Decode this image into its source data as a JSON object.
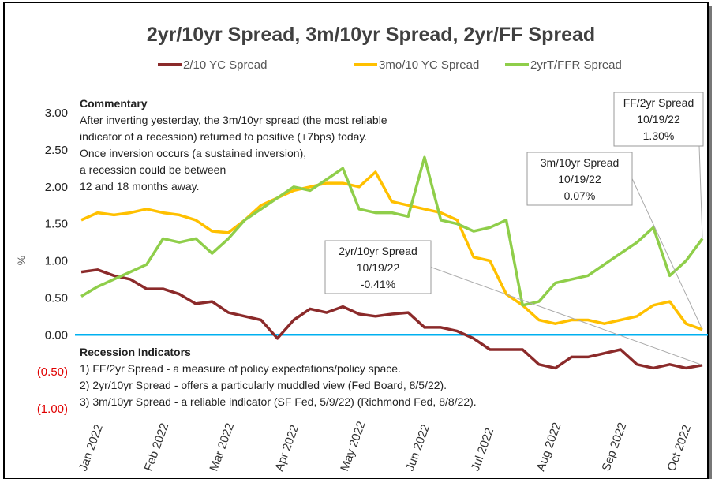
{
  "chart_data": {
    "type": "line",
    "title": "2yr/10yr Spread, 3m/10yr Spread, 2yr/FF Spread",
    "y_label": "%",
    "x": [
      "Jan 2022",
      null,
      null,
      null,
      "Feb 2022",
      null,
      null,
      null,
      "Mar 2022",
      null,
      null,
      null,
      "Apr 2022",
      null,
      null,
      null,
      "May 2022",
      null,
      null,
      null,
      "Jun 2022",
      null,
      null,
      null,
      "Jul 2022",
      null,
      null,
      null,
      "Aug 2022",
      null,
      null,
      null,
      "Sep 2022",
      null,
      null,
      null,
      "Oct 2022",
      null,
      null
    ],
    "series": [
      {
        "name": "2/10 YC Spread",
        "color": "#8b2a2a",
        "values": [
          0.85,
          0.88,
          0.8,
          0.75,
          0.62,
          0.62,
          0.55,
          0.42,
          0.45,
          0.3,
          0.25,
          0.2,
          -0.05,
          0.2,
          0.35,
          0.3,
          0.38,
          0.28,
          0.25,
          0.28,
          0.3,
          0.1,
          0.1,
          0.05,
          -0.05,
          -0.2,
          -0.2,
          -0.2,
          -0.4,
          -0.45,
          -0.3,
          -0.3,
          -0.25,
          -0.2,
          -0.4,
          -0.45,
          -0.4,
          -0.45,
          -0.41
        ]
      },
      {
        "name": "3mo/10 YC Spread",
        "color": "#ffc000",
        "values": [
          1.55,
          1.65,
          1.62,
          1.65,
          1.7,
          1.65,
          1.62,
          1.55,
          1.4,
          1.38,
          1.55,
          1.75,
          1.85,
          1.95,
          2.0,
          2.05,
          2.05,
          2.0,
          2.2,
          1.8,
          1.75,
          1.7,
          1.65,
          1.55,
          1.05,
          1.0,
          0.55,
          0.4,
          0.2,
          0.15,
          0.2,
          0.2,
          0.15,
          0.2,
          0.25,
          0.4,
          0.45,
          0.15,
          0.07
        ]
      },
      {
        "name": "2yrT/FFR Spread",
        "color": "#8fce4a",
        "values": [
          0.52,
          0.65,
          0.75,
          0.85,
          0.95,
          1.3,
          1.25,
          1.3,
          1.1,
          1.3,
          1.55,
          1.7,
          1.85,
          2.0,
          1.95,
          2.1,
          2.25,
          1.7,
          1.65,
          1.65,
          1.6,
          2.4,
          1.55,
          1.5,
          1.4,
          1.45,
          1.55,
          0.4,
          0.45,
          0.7,
          0.75,
          0.8,
          0.95,
          1.1,
          1.25,
          1.45,
          0.8,
          1.0,
          1.3
        ]
      }
    ],
    "ylim": [
      -1,
      3
    ],
    "yticks": [
      {
        "value": 3,
        "label": "3.00"
      },
      {
        "value": 2.5,
        "label": "2.50"
      },
      {
        "value": 2,
        "label": "2.00"
      },
      {
        "value": 1.5,
        "label": "1.50"
      },
      {
        "value": 1,
        "label": "1.00"
      },
      {
        "value": 0.5,
        "label": "0.50"
      },
      {
        "value": 0,
        "label": "0.00"
      },
      {
        "value": -0.5,
        "label": "(0.50)"
      },
      {
        "value": -1,
        "label": "(1.00)"
      }
    ],
    "negative_tick_color": "#e00000",
    "zero_line_color": "#00b0f0",
    "legend": "top",
    "commentary": {
      "heading": "Commentary",
      "lines": [
        "After inverting yesterday, the 3m/10yr spread (the most reliable",
        "indicator of a recession) returned to positive (+7bps) today.",
        "Once inversion occurs (a sustained inversion),",
        "a recession could be between",
        "12 and 18 months away."
      ]
    },
    "recession_indicators": {
      "heading": "Recession Indicators",
      "lines": [
        "1) FF/2yr Spread - a measure of policy expectations/policy space.",
        "2) 2yr/10yr Spread - offers a particularly muddled view (Fed Board, 8/5/22).",
        "3) 3m/10yr Spread - a reliable indicator (SF Fed, 5/9/22) (Richmond Fed, 8/8/22)."
      ]
    },
    "annotations": [
      {
        "series": 2,
        "lines": [
          "FF/2yr Spread",
          "10/19/22",
          "1.30%"
        ]
      },
      {
        "series": 1,
        "lines": [
          "3m/10yr Spread",
          "10/19/22",
          "0.07%"
        ]
      },
      {
        "series": 0,
        "lines": [
          "2yr/10yr Spread",
          "10/19/22",
          "-0.41%"
        ]
      }
    ]
  }
}
